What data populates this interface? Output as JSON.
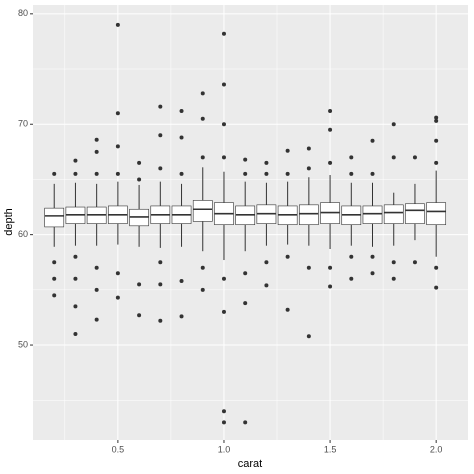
{
  "chart_data": {
    "type": "boxplot",
    "x_label": "carat",
    "y_label": "depth",
    "x": [
      0.2,
      0.3,
      0.4,
      0.5,
      0.6,
      0.7,
      0.8,
      0.9,
      1.0,
      1.1,
      1.2,
      1.3,
      1.4,
      1.5,
      1.6,
      1.7,
      1.8,
      1.9,
      2.0
    ],
    "low": [
      58.9,
      59.0,
      59.0,
      59.1,
      58.9,
      58.8,
      58.9,
      58.5,
      57.7,
      58.5,
      59.0,
      59.1,
      59.0,
      58.7,
      59.0,
      58.9,
      59.0,
      59.5,
      58.0
    ],
    "q1": [
      60.7,
      61.0,
      61.0,
      61.0,
      60.8,
      61.0,
      61.0,
      61.2,
      60.9,
      60.9,
      61.0,
      60.9,
      60.9,
      61.0,
      60.9,
      61.0,
      61.0,
      61.0,
      60.9
    ],
    "median": [
      61.7,
      61.8,
      61.8,
      61.8,
      61.6,
      61.8,
      61.8,
      62.3,
      61.9,
      61.8,
      61.9,
      61.8,
      61.9,
      62.0,
      61.8,
      61.9,
      62.0,
      62.2,
      62.1
    ],
    "q3": [
      62.4,
      62.5,
      62.5,
      62.6,
      62.3,
      62.6,
      62.6,
      63.1,
      62.9,
      62.6,
      62.7,
      62.6,
      62.7,
      62.9,
      62.6,
      62.6,
      62.7,
      62.8,
      62.9
    ],
    "high": [
      64.6,
      64.7,
      64.6,
      64.8,
      64.5,
      64.8,
      64.6,
      66.1,
      65.7,
      64.8,
      64.7,
      64.8,
      65.2,
      65.4,
      64.7,
      64.7,
      63.8,
      64.6,
      65.8
    ],
    "outliers": [
      [
        54.5,
        56.0,
        57.5,
        65.5
      ],
      [
        51.0,
        53.5,
        56.0,
        58.0,
        65.5,
        66.7
      ],
      [
        52.3,
        55.0,
        57.0,
        65.5,
        67.5,
        68.6
      ],
      [
        54.3,
        56.5,
        65.5,
        68.0,
        71.0,
        79.0
      ],
      [
        52.7,
        55.5,
        65.0,
        66.5
      ],
      [
        52.2,
        55.5,
        57.5,
        66.0,
        69.0,
        71.6
      ],
      [
        52.6,
        55.8,
        65.5,
        68.8,
        71.2
      ],
      [
        55.0,
        57.0,
        67.0,
        70.5,
        72.8
      ],
      [
        43.0,
        44.0,
        53.0,
        56.0,
        67.0,
        70.0,
        73.6,
        78.2
      ],
      [
        43.0,
        53.8,
        56.5,
        65.5,
        66.8
      ],
      [
        55.4,
        57.5,
        65.5,
        66.5
      ],
      [
        53.2,
        58.0,
        65.5,
        67.6
      ],
      [
        50.8,
        57.0,
        66.0,
        67.8
      ],
      [
        55.3,
        57.0,
        66.5,
        69.5,
        71.2
      ],
      [
        56.0,
        58.0,
        65.5,
        67.0
      ],
      [
        56.5,
        58.0,
        65.5,
        68.5
      ],
      [
        56.0,
        57.5,
        67.0,
        70.0
      ],
      [
        57.5,
        67.0
      ],
      [
        55.2,
        57.0,
        66.5,
        68.5,
        70.3,
        70.6
      ]
    ],
    "box_width": 0.09,
    "xlim": [
      0.1,
      2.15
    ],
    "ylim": [
      41.4,
      80.8
    ],
    "xticks": [
      0.5,
      {
        "value": 1,
        "label": "1.0"
      },
      1.5,
      {
        "value": 2,
        "label": "2.0"
      }
    ],
    "yticks": [
      50,
      60,
      70,
      80
    ],
    "x_minor_ticks": [
      0.25,
      0.75,
      1.25,
      1.75
    ],
    "y_minor_ticks": [
      45,
      55,
      65,
      75
    ],
    "panel_color": "#ebebeb",
    "grid_color": "#ffffff",
    "box_fill": "#ffffff",
    "line_color": "#333333"
  }
}
